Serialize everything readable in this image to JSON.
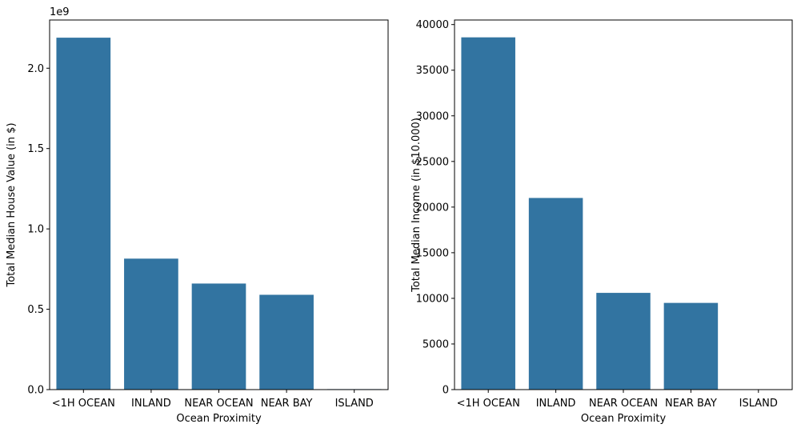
{
  "chart_data": [
    {
      "type": "bar",
      "categories": [
        "<1H OCEAN",
        "INLAND",
        "NEAR OCEAN",
        "NEAR BAY",
        "ISLAND"
      ],
      "values": [
        2190000000,
        815000000,
        660000000,
        590000000,
        3000000
      ],
      "xlabel": "Ocean Proximity",
      "ylabel": "Total Median House Value (in $)",
      "ylim": [
        0,
        2300000000
      ],
      "yticks": [
        0,
        500000000,
        1000000000,
        1500000000,
        2000000000
      ],
      "ytick_labels": [
        "0.0",
        "0.5",
        "1.0",
        "1.5",
        "2.0"
      ],
      "offset_text": "1e9",
      "bar_color": "#3274a1",
      "grid": false
    },
    {
      "type": "bar",
      "categories": [
        "<1H OCEAN",
        "INLAND",
        "NEAR OCEAN",
        "NEAR BAY",
        "ISLAND"
      ],
      "values": [
        38600,
        21000,
        10600,
        9500,
        18
      ],
      "xlabel": "Ocean Proximity",
      "ylabel": "Total Median Income (in $10.000)",
      "ylim": [
        0,
        40500
      ],
      "yticks": [
        0,
        5000,
        10000,
        15000,
        20000,
        25000,
        30000,
        35000,
        40000
      ],
      "ytick_labels": [
        "0",
        "5000",
        "10000",
        "15000",
        "20000",
        "25000",
        "30000",
        "35000",
        "40000"
      ],
      "offset_text": "",
      "bar_color": "#3274a1",
      "grid": false
    }
  ]
}
